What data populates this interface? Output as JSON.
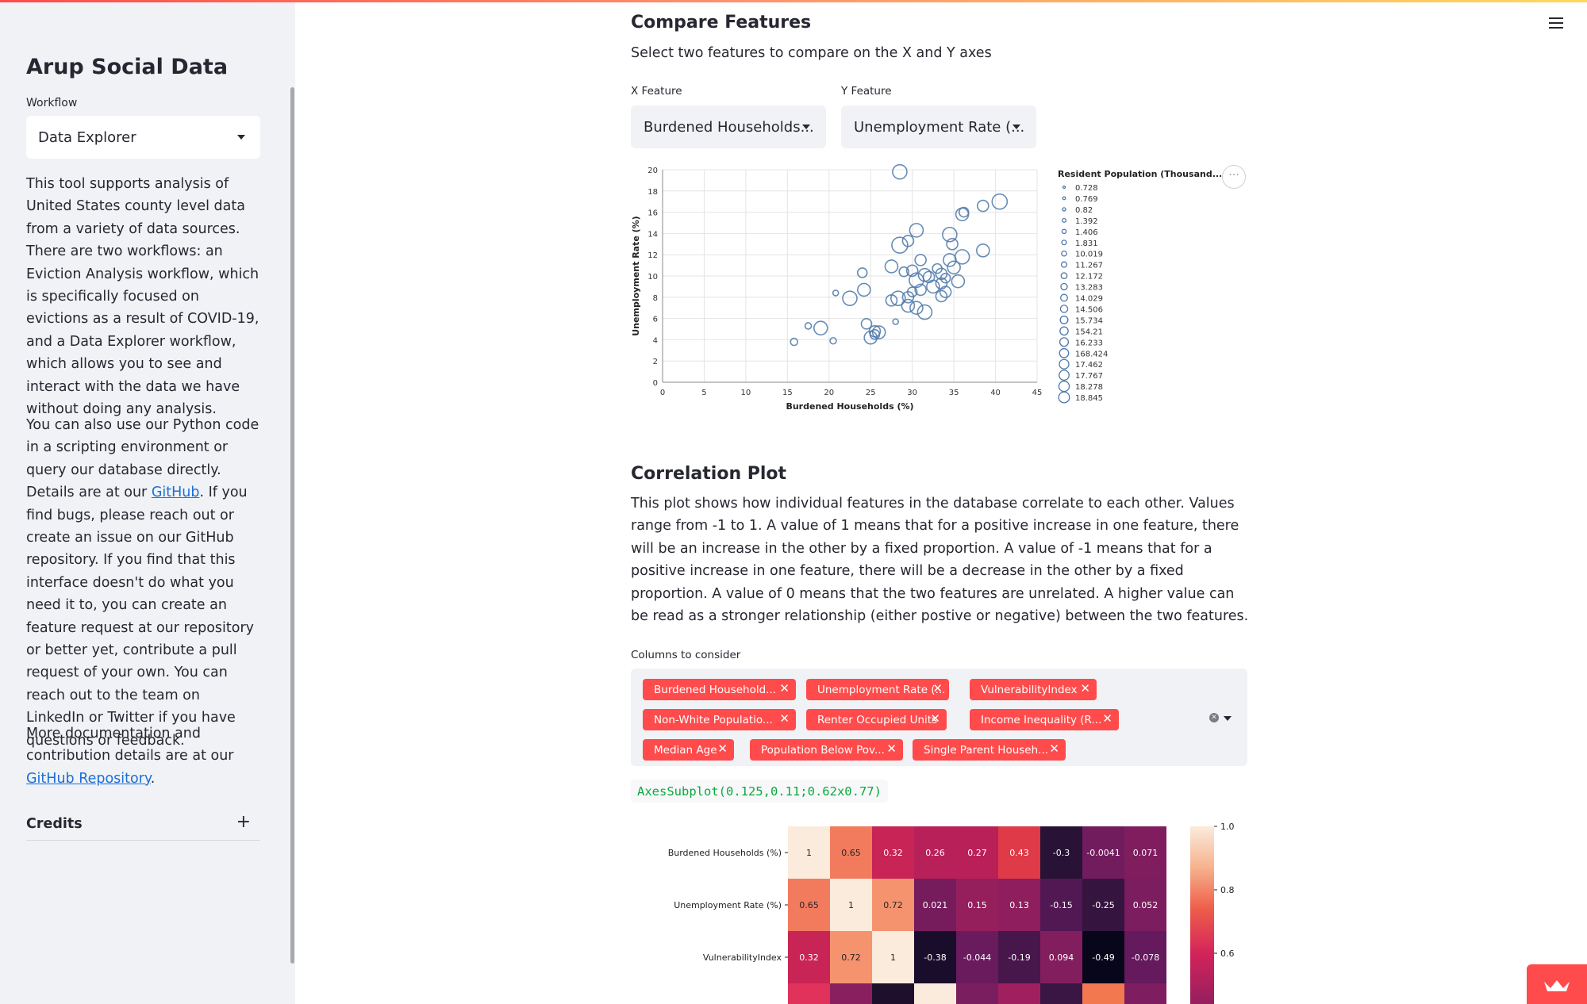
{
  "sidebar": {
    "title": "Arup Social Data",
    "workflow_label": "Workflow",
    "workflow_value": "Data Explorer",
    "intro": "This tool supports analysis of United States county level data from a variety of data sources. There are two workflows: an Eviction Analysis workflow, which is specifically focused on evictions as a result of COVID-19, and a Data Explorer workflow, which allows you to see and interact with the data we have without doing any analysis.",
    "para2_a": "You can also use our Python code in a scripting environment or query our database directly. Details are at our ",
    "para2_link": "GitHub",
    "para2_b": ". If you find bugs, please reach out or create an issue on our GitHub repository. If you find that this interface doesn't do what you need it to, you can create an feature request at our repository or better yet, contribute a pull request of your own. You can reach out to the team on LinkedIn or Twitter if you have questions or feedback.",
    "para3_a": "More documentation and contribution details are at our ",
    "para3_link": "GitHub Repository",
    "para3_b": ".",
    "credits_label": "Credits",
    "credits_icon": "+"
  },
  "compare": {
    "title": "Compare Features",
    "subtitle": "Select two features to compare on the X and Y axes",
    "x_label": "X Feature",
    "x_value": "Burdened Households...",
    "y_label": "Y Feature",
    "y_value": "Unemployment Rate (..."
  },
  "chart_data": {
    "type": "scatter",
    "xlabel": "Burdened Households (%)",
    "ylabel": "Unemployment Rate (%)",
    "xlim": [
      0,
      45
    ],
    "ylim": [
      0,
      20
    ],
    "xticks": [
      0,
      5,
      10,
      15,
      20,
      25,
      30,
      35,
      40,
      45
    ],
    "yticks": [
      0,
      2,
      4,
      6,
      8,
      10,
      12,
      14,
      16,
      18,
      20
    ],
    "grid": true,
    "legend_title": "Resident Population (Thousand...",
    "legend_position": "right",
    "legend_entries": [
      "0.728",
      "0.769",
      "0.82",
      "1.392",
      "1.406",
      "1.831",
      "10.019",
      "11.267",
      "12.172",
      "13.283",
      "14.029",
      "14.506",
      "15.734",
      "154.21",
      "16.233",
      "168.424",
      "17.462",
      "17.767",
      "18.278",
      "18.845"
    ],
    "stroke_color": "#4c78a8",
    "points": [
      {
        "x": 28.5,
        "y": 19.8,
        "size": 16
      },
      {
        "x": 40.5,
        "y": 17.0,
        "size": 17
      },
      {
        "x": 38.5,
        "y": 16.6,
        "size": 12
      },
      {
        "x": 36.0,
        "y": 15.8,
        "size": 14
      },
      {
        "x": 36.2,
        "y": 16.0,
        "size": 10
      },
      {
        "x": 30.5,
        "y": 14.3,
        "size": 15
      },
      {
        "x": 34.5,
        "y": 13.9,
        "size": 16
      },
      {
        "x": 28.5,
        "y": 12.9,
        "size": 18
      },
      {
        "x": 29.5,
        "y": 13.3,
        "size": 12
      },
      {
        "x": 34.8,
        "y": 13.0,
        "size": 12
      },
      {
        "x": 38.5,
        "y": 12.4,
        "size": 14
      },
      {
        "x": 36.0,
        "y": 11.8,
        "size": 16
      },
      {
        "x": 34.5,
        "y": 11.5,
        "size": 14
      },
      {
        "x": 31.0,
        "y": 11.5,
        "size": 12
      },
      {
        "x": 27.5,
        "y": 10.9,
        "size": 14
      },
      {
        "x": 29.0,
        "y": 10.4,
        "size": 10
      },
      {
        "x": 30.0,
        "y": 10.5,
        "size": 12
      },
      {
        "x": 31.5,
        "y": 10.1,
        "size": 14
      },
      {
        "x": 33.0,
        "y": 10.7,
        "size": 10
      },
      {
        "x": 35.0,
        "y": 10.8,
        "size": 14
      },
      {
        "x": 33.5,
        "y": 10.2,
        "size": 12
      },
      {
        "x": 32.0,
        "y": 9.9,
        "size": 12
      },
      {
        "x": 30.5,
        "y": 9.6,
        "size": 16
      },
      {
        "x": 35.5,
        "y": 9.5,
        "size": 14
      },
      {
        "x": 33.5,
        "y": 9.3,
        "size": 12
      },
      {
        "x": 34.0,
        "y": 9.8,
        "size": 10
      },
      {
        "x": 32.5,
        "y": 9.0,
        "size": 14
      },
      {
        "x": 31.0,
        "y": 8.7,
        "size": 12
      },
      {
        "x": 34.0,
        "y": 8.5,
        "size": 12
      },
      {
        "x": 30.0,
        "y": 8.5,
        "size": 10
      },
      {
        "x": 29.5,
        "y": 8.0,
        "size": 12
      },
      {
        "x": 33.5,
        "y": 8.1,
        "size": 12
      },
      {
        "x": 27.5,
        "y": 7.7,
        "size": 12
      },
      {
        "x": 28.3,
        "y": 7.9,
        "size": 16
      },
      {
        "x": 29.5,
        "y": 7.2,
        "size": 14
      },
      {
        "x": 30.5,
        "y": 7.0,
        "size": 14
      },
      {
        "x": 31.5,
        "y": 6.6,
        "size": 16
      },
      {
        "x": 24.0,
        "y": 10.3,
        "size": 10
      },
      {
        "x": 24.2,
        "y": 8.7,
        "size": 14
      },
      {
        "x": 22.5,
        "y": 7.9,
        "size": 16
      },
      {
        "x": 20.8,
        "y": 8.4,
        "size": 5
      },
      {
        "x": 28.0,
        "y": 5.7,
        "size": 5
      },
      {
        "x": 24.5,
        "y": 5.5,
        "size": 11
      },
      {
        "x": 25.5,
        "y": 4.8,
        "size": 12
      },
      {
        "x": 26.0,
        "y": 4.7,
        "size": 14
      },
      {
        "x": 25.0,
        "y": 4.2,
        "size": 14
      },
      {
        "x": 25.5,
        "y": 4.5,
        "size": 10
      },
      {
        "x": 19.0,
        "y": 5.1,
        "size": 15
      },
      {
        "x": 17.5,
        "y": 5.3,
        "size": 6
      },
      {
        "x": 15.8,
        "y": 3.8,
        "size": 7
      },
      {
        "x": 20.5,
        "y": 3.9,
        "size": 6
      }
    ]
  },
  "correlation": {
    "title": "Correlation Plot",
    "description": "This plot shows how individual features in the database correlate to each other. Values range from -1 to 1. A value of 1 means that for a positive increase in one feature, there will be an increase in the other by a fixed proportion. A value of -1 means that for a positive increase in one feature, there will be a decrease in the other by a fixed proportion. A value of 0 means that the two features are unrelated. A higher value can be read as a stronger relationship (either postive or negative) between the two features.",
    "columns_label": "Columns to consider",
    "tags": [
      "Burdened Household...",
      "Unemployment Rate (...",
      "VulnerabilityIndex",
      "Non-White Populatio...",
      "Renter Occupied Units",
      "Income Inequality (R...",
      "Median Age",
      "Population Below Pov...",
      "Single Parent Househ..."
    ],
    "remove_icon": "✕",
    "code_output": "AxesSubplot(0.125,0.11;0.62x0.77)"
  },
  "heatmap_data": {
    "type": "heatmap",
    "rows": [
      "Burdened Households (%)",
      "Unemployment Rate (%)",
      "VulnerabilityIndex"
    ],
    "values": [
      [
        1,
        0.65,
        0.32,
        0.26,
        0.27,
        0.43,
        -0.3,
        -0.0041,
        0.071
      ],
      [
        0.65,
        1,
        0.72,
        0.021,
        0.15,
        0.13,
        -0.15,
        -0.25,
        0.052
      ],
      [
        0.32,
        0.72,
        1,
        -0.38,
        -0.044,
        -0.19,
        0.094,
        -0.49,
        -0.078
      ]
    ],
    "partial_row_colors": [
      "#e0325a",
      "#8a1f5f",
      "#1e0f2c",
      "#faebdd",
      "#7b1e5f",
      "#a0205f",
      "#3a1645",
      "#f2784f",
      "#7e1e60"
    ],
    "colorbar_ticks": [
      "1.0",
      "0.8",
      "0.6"
    ]
  }
}
